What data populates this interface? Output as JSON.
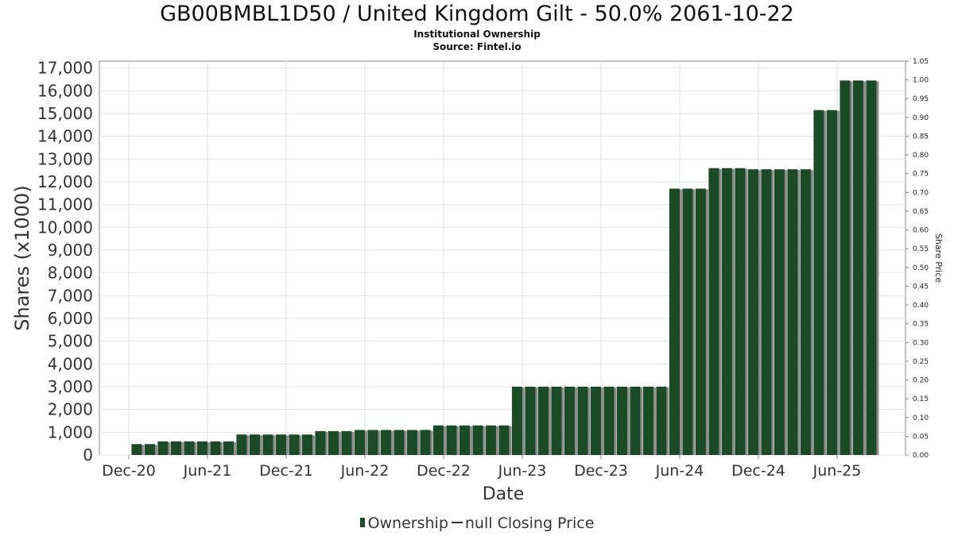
{
  "chart_data": {
    "type": "bar",
    "title": "GB00BMBL1D50 / United Kingdom Gilt - 50.0% 2061-10-22",
    "subtitle": "Institutional Ownership",
    "source": "Source: Fintel.io",
    "xlabel": "Date",
    "ylabel": "Shares (x1000)",
    "y2label": "Share Price",
    "ylim": [
      0,
      17300
    ],
    "y2lim": [
      0,
      1.05
    ],
    "grid": true,
    "y_ticks": [
      0,
      1000,
      2000,
      3000,
      4000,
      5000,
      6000,
      7000,
      8000,
      9000,
      10000,
      11000,
      12000,
      13000,
      14000,
      15000,
      16000,
      17000
    ],
    "y_tick_labels": [
      "0",
      "1,000",
      "2,000",
      "3,000",
      "4,000",
      "5,000",
      "6,000",
      "7,000",
      "8,000",
      "9,000",
      "10,000",
      "11,000",
      "12,000",
      "13,000",
      "14,000",
      "15,000",
      "16,000",
      "17,000"
    ],
    "y2_tick_labels": [
      "0.00",
      "0.05",
      "0.10",
      "0.15",
      "0.20",
      "0.25",
      "0.30",
      "0.35",
      "0.40",
      "0.45",
      "0.50",
      "0.55",
      "0.60",
      "0.65",
      "0.70",
      "0.75",
      "0.80",
      "0.85",
      "0.90",
      "0.95",
      "1.00",
      "1.05"
    ],
    "x_ticks": [
      {
        "label": "Dec-20",
        "month_index": 0
      },
      {
        "label": "Jun-21",
        "month_index": 6
      },
      {
        "label": "Dec-21",
        "month_index": 12
      },
      {
        "label": "Jun-22",
        "month_index": 18
      },
      {
        "label": "Dec-22",
        "month_index": 24
      },
      {
        "label": "Jun-23",
        "month_index": 30
      },
      {
        "label": "Dec-23",
        "month_index": 36
      },
      {
        "label": "Jun-24",
        "month_index": 42
      },
      {
        "label": "Dec-24",
        "month_index": 48
      },
      {
        "label": "Jun-25",
        "month_index": 54
      }
    ],
    "bar_start_month_index": 0.6,
    "series": [
      {
        "name": "Ownership",
        "color": "#1a4a26",
        "values": [
          480,
          480,
          600,
          600,
          600,
          600,
          600,
          600,
          900,
          900,
          900,
          900,
          900,
          900,
          1050,
          1050,
          1050,
          1100,
          1100,
          1100,
          1100,
          1100,
          1100,
          1300,
          1300,
          1300,
          1300,
          1300,
          1300,
          3000,
          3000,
          3000,
          3000,
          3000,
          3000,
          3000,
          3000,
          3000,
          3000,
          3000,
          3000,
          11700,
          11700,
          11700,
          12600,
          12600,
          12600,
          12550,
          12550,
          12550,
          12550,
          12550,
          15150,
          15150,
          16450,
          16450,
          16450
        ]
      },
      {
        "name": "null Closing Price",
        "color": "#333333",
        "values": []
      }
    ]
  },
  "legend": {
    "ownership_label": "Ownership",
    "price_label": "null Closing Price"
  }
}
